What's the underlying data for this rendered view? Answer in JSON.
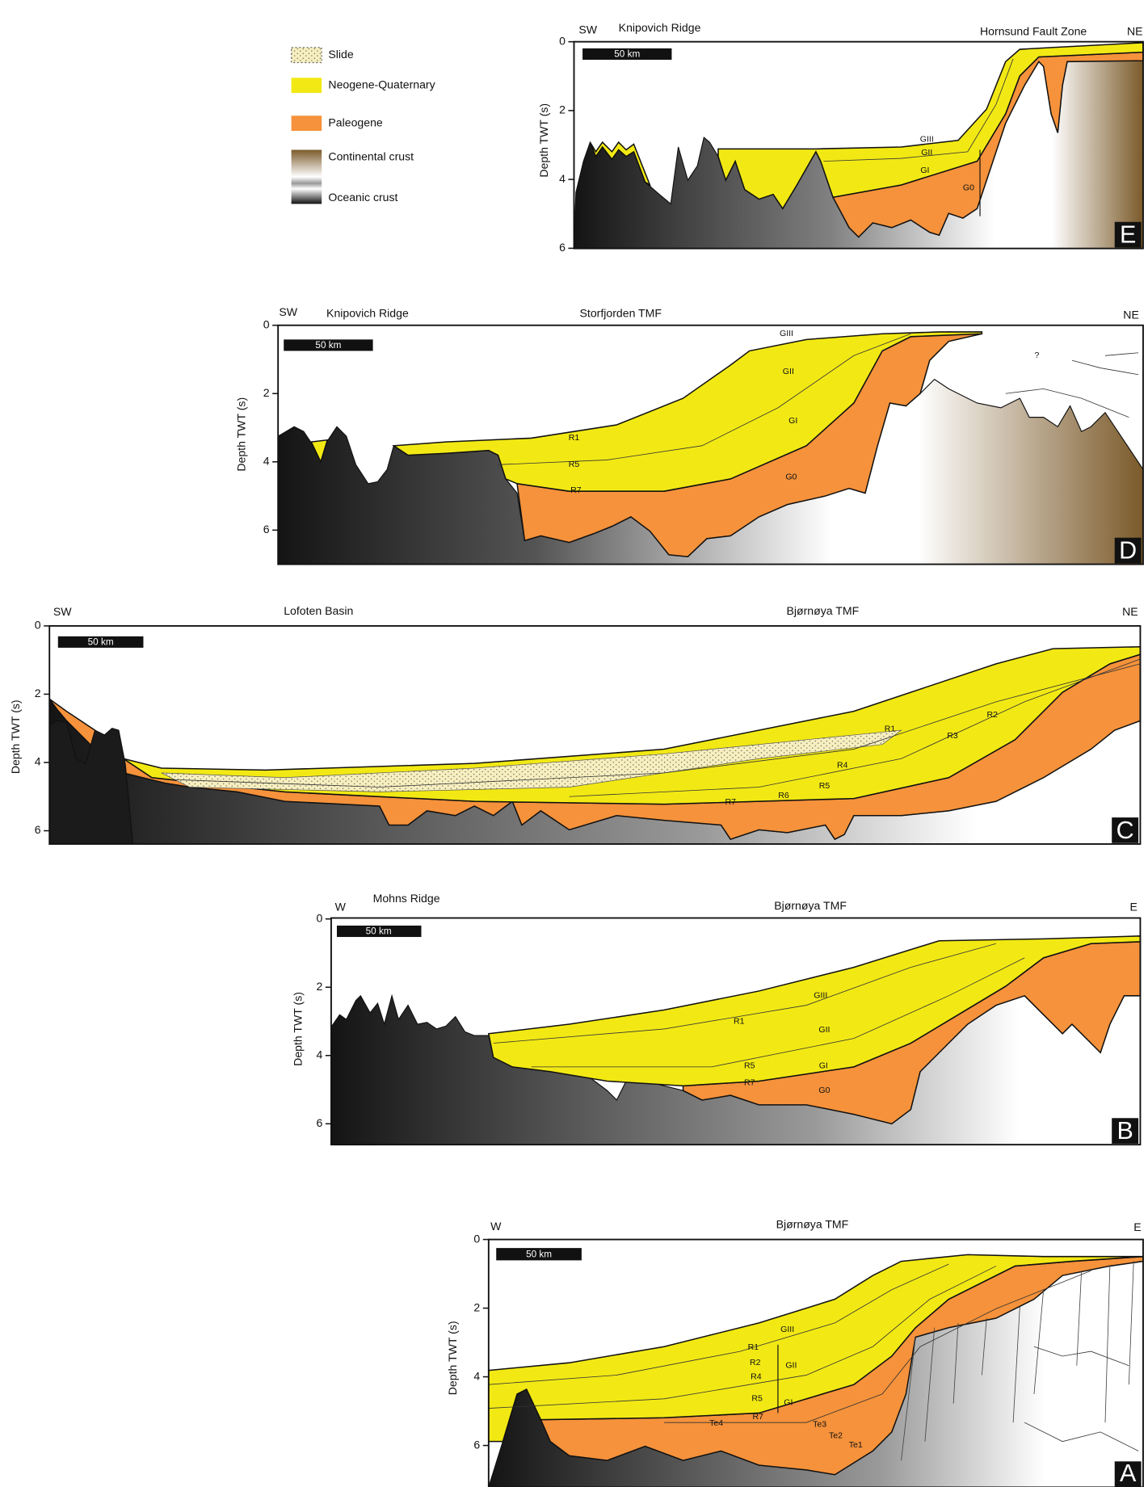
{
  "legend": [
    "Slide",
    "Neogene-Quaternary",
    "Paleogene",
    "Continental crust",
    "Oceanic crust"
  ],
  "panels": [
    {
      "letter": "E",
      "left": "SW",
      "right": "NE",
      "places": [
        "Knipovich Ridge",
        "Hornsund Fault Zone"
      ],
      "scale_bar": "50 km",
      "y_axis_label": "Depth TWT (s)",
      "yticks": [
        0,
        2,
        4,
        6
      ],
      "units": [
        "GIII",
        "GII",
        "GI",
        "G0"
      ]
    },
    {
      "letter": "D",
      "left": "SW",
      "right": "NE",
      "places": [
        "Knipovich Ridge",
        "Storfjorden TMF"
      ],
      "scale_bar": "50 km",
      "y_axis_label": "Depth TWT (s)",
      "yticks": [
        0,
        2,
        4,
        6
      ],
      "units": [
        "GIII",
        "GII",
        "GI",
        "G0",
        "R1",
        "R5",
        "R7",
        "?"
      ]
    },
    {
      "letter": "C",
      "left": "SW",
      "right": "NE",
      "places": [
        "Lofoten Basin",
        "Bjørnøya TMF"
      ],
      "scale_bar": "50 km",
      "y_axis_label": "Depth TWT (s)",
      "yticks": [
        0,
        2,
        4,
        6
      ],
      "units": [
        "R1",
        "R2",
        "R3",
        "R4",
        "R5",
        "R6",
        "R7"
      ]
    },
    {
      "letter": "B",
      "left": "W",
      "right": "E",
      "places": [
        "Mohns Ridge",
        "Bjørnøya TMF"
      ],
      "scale_bar": "50 km",
      "y_axis_label": "Depth TWT (s)",
      "yticks": [
        0,
        2,
        4,
        6
      ],
      "units": [
        "GIII",
        "R1",
        "GII",
        "R5",
        "GI",
        "R7",
        "G0"
      ]
    },
    {
      "letter": "A",
      "left": "W",
      "right": "E",
      "places": [
        "Bjørnøya TMF"
      ],
      "scale_bar": "50 km",
      "y_axis_label": "Depth TWT (s)",
      "yticks": [
        0,
        2,
        4,
        6
      ],
      "units": [
        "GIII",
        "R1",
        "R2",
        "GII",
        "R4",
        "R5",
        "GI",
        "R7",
        "Te4",
        "Te3",
        "Te2",
        "Te1"
      ]
    }
  ]
}
